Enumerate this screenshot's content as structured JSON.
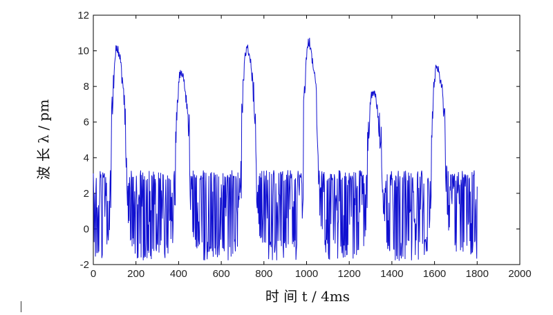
{
  "chart_data": {
    "type": "line",
    "title": "",
    "xlabel": "时 间 t / 4ms",
    "ylabel": "波 长 λ / pm",
    "xlim": [
      0,
      2000
    ],
    "ylim": [
      -2,
      12
    ],
    "xticks": [
      0,
      200,
      400,
      600,
      800,
      1000,
      1200,
      1400,
      1600,
      1800,
      2000
    ],
    "yticks": [
      -2,
      0,
      2,
      4,
      6,
      8,
      10,
      12
    ],
    "grid": false,
    "legend": "none",
    "series": [
      {
        "color": "#1010d0",
        "x_range": [
          0,
          1800
        ],
        "baseline_range": [
          -1.8,
          3.3
        ],
        "peaks": [
          {
            "x": 110,
            "y": 10.5
          },
          {
            "x": 410,
            "y": 9.2
          },
          {
            "x": 720,
            "y": 10.5
          },
          {
            "x": 1010,
            "y": 10.8
          },
          {
            "x": 1310,
            "y": 8.0
          },
          {
            "x": 1610,
            "y": 9.5
          }
        ]
      }
    ]
  }
}
